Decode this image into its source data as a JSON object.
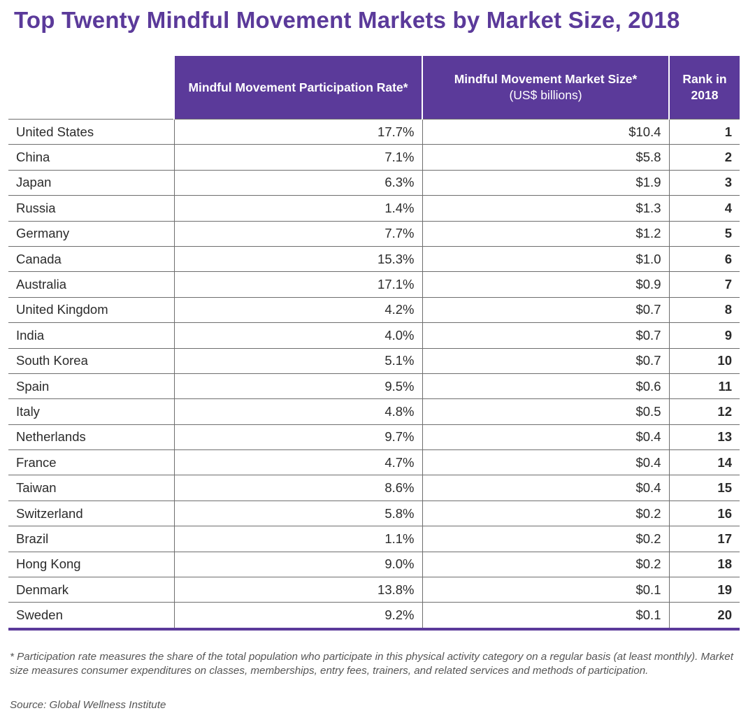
{
  "title": "Top Twenty Mindful Movement Markets by Market Size, 2018",
  "columns": {
    "rate": {
      "main": "Mindful Movement Participation Rate*",
      "sub": ""
    },
    "size": {
      "main": "Mindful Movement Market Size*",
      "sub": "(US$ billions)"
    },
    "rank": {
      "main": "Rank in 2018",
      "sub": ""
    }
  },
  "footnote": "* Participation rate measures the share of the total population who participate in this physical activity category on a regular basis (at least monthly). Market size measures consumer expenditures on classes, memberships, entry fees, trainers, and related services and methods of participation.",
  "source": "Source: Global Wellness Institute",
  "chart_data": {
    "type": "table",
    "title": "Top Twenty Mindful Movement Markets by Market Size, 2018",
    "headers": [
      "",
      "Mindful Movement Participation Rate*",
      "Mindful Movement Market Size* (US$ billions)",
      "Rank in 2018"
    ],
    "rows": [
      {
        "country": "United States",
        "rate": "17.7%",
        "size": "$10.4",
        "rank": "1"
      },
      {
        "country": "China",
        "rate": "7.1%",
        "size": "$5.8",
        "rank": "2"
      },
      {
        "country": "Japan",
        "rate": "6.3%",
        "size": "$1.9",
        "rank": "3"
      },
      {
        "country": "Russia",
        "rate": "1.4%",
        "size": "$1.3",
        "rank": "4"
      },
      {
        "country": "Germany",
        "rate": "7.7%",
        "size": "$1.2",
        "rank": "5"
      },
      {
        "country": "Canada",
        "rate": "15.3%",
        "size": "$1.0",
        "rank": "6"
      },
      {
        "country": "Australia",
        "rate": "17.1%",
        "size": "$0.9",
        "rank": "7"
      },
      {
        "country": "United Kingdom",
        "rate": "4.2%",
        "size": "$0.7",
        "rank": "8"
      },
      {
        "country": "India",
        "rate": "4.0%",
        "size": "$0.7",
        "rank": "9"
      },
      {
        "country": "South Korea",
        "rate": "5.1%",
        "size": "$0.7",
        "rank": "10"
      },
      {
        "country": "Spain",
        "rate": "9.5%",
        "size": "$0.6",
        "rank": "11"
      },
      {
        "country": "Italy",
        "rate": "4.8%",
        "size": "$0.5",
        "rank": "12"
      },
      {
        "country": "Netherlands",
        "rate": "9.7%",
        "size": "$0.4",
        "rank": "13"
      },
      {
        "country": "France",
        "rate": "4.7%",
        "size": "$0.4",
        "rank": "14"
      },
      {
        "country": "Taiwan",
        "rate": "8.6%",
        "size": "$0.4",
        "rank": "15"
      },
      {
        "country": "Switzerland",
        "rate": "5.8%",
        "size": "$0.2",
        "rank": "16"
      },
      {
        "country": "Brazil",
        "rate": "1.1%",
        "size": "$0.2",
        "rank": "17"
      },
      {
        "country": "Hong Kong",
        "rate": "9.0%",
        "size": "$0.2",
        "rank": "18"
      },
      {
        "country": "Denmark",
        "rate": "13.8%",
        "size": "$0.1",
        "rank": "19"
      },
      {
        "country": "Sweden",
        "rate": "9.2%",
        "size": "$0.1",
        "rank": "20"
      }
    ]
  },
  "colors": {
    "accent": "#5b3a9a",
    "header_text": "#ffffff",
    "grid": "#6e6e6e"
  }
}
